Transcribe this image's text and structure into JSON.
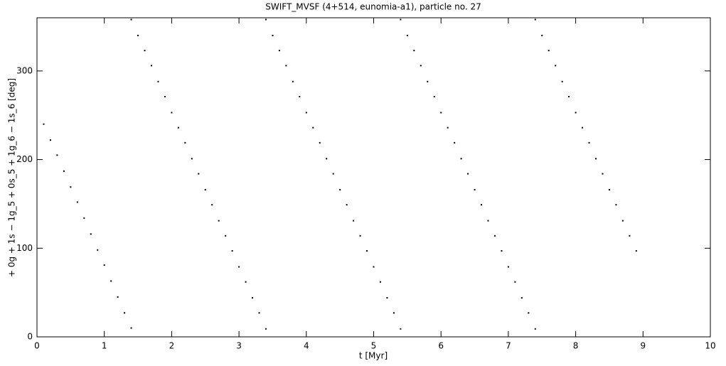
{
  "chart_data": {
    "type": "scatter",
    "title": "SWIFT_MVSF (4+514, eunomia-a1), particle no. 27",
    "xlabel": "t [Myr]",
    "ylabel": "+ 0g + 1s − 1g_5 + 0s_5 + 1g_6 − 1s_6 [deg]",
    "color": "#000000",
    "x": [
      0.1,
      0.2,
      0.3,
      0.4,
      0.5,
      0.6,
      0.7,
      0.8,
      0.9,
      1.0,
      1.1,
      1.2,
      1.3,
      1.4,
      1.4,
      1.5,
      1.6,
      1.7,
      1.8,
      1.9,
      2.0,
      2.1,
      2.2,
      2.3,
      2.4,
      2.5,
      2.6,
      2.7,
      2.8,
      2.9,
      3.0,
      3.1,
      3.2,
      3.3,
      3.4,
      3.4,
      3.5,
      3.6,
      3.7,
      3.8,
      3.9,
      4.0,
      4.1,
      4.2,
      4.3,
      4.4,
      4.5,
      4.6,
      4.7,
      4.8,
      4.9,
      5.0,
      5.1,
      5.2,
      5.3,
      5.4,
      5.4,
      5.5,
      5.6,
      5.7,
      5.8,
      5.9,
      6.0,
      6.1,
      6.2,
      6.3,
      6.4,
      6.5,
      6.6,
      6.7,
      6.8,
      6.9,
      7.0,
      7.1,
      7.2,
      7.3,
      7.4,
      7.4,
      7.5,
      7.6,
      7.7,
      7.8,
      7.9,
      8.0,
      8.1,
      8.2,
      8.3,
      8.4,
      8.5,
      8.6,
      8.7,
      8.8,
      8.9
    ],
    "values": [
      240,
      222,
      205,
      187,
      169,
      152,
      134,
      116,
      98,
      81,
      63,
      45,
      27,
      10,
      358,
      340,
      323,
      306,
      288,
      271,
      253,
      236,
      219,
      201,
      184,
      166,
      149,
      131,
      114,
      97,
      79,
      62,
      44,
      27,
      9,
      358,
      340,
      323,
      306,
      288,
      271,
      253,
      236,
      219,
      201,
      184,
      166,
      149,
      131,
      114,
      97,
      79,
      62,
      44,
      27,
      9,
      358,
      340,
      323,
      306,
      288,
      271,
      253,
      236,
      219,
      201,
      184,
      166,
      149,
      131,
      114,
      97,
      79,
      62,
      44,
      27,
      9,
      358,
      340,
      323,
      306,
      288,
      271,
      253,
      236,
      219,
      201,
      184,
      166,
      149,
      131,
      114,
      97
    ],
    "xlim": [
      0,
      10
    ],
    "ylim": [
      0,
      360
    ],
    "xticks": [
      0,
      1,
      2,
      3,
      4,
      5,
      6,
      7,
      8,
      9,
      10
    ],
    "yticks": [
      0,
      100,
      200,
      300
    ]
  }
}
